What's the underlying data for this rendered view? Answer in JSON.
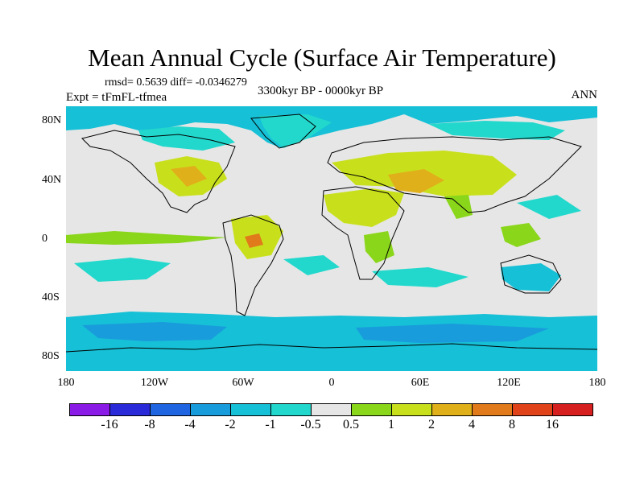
{
  "title": "Mean Annual Cycle (Surface Air Temperature)",
  "stats": "rmsd= 0.5639 diff= -0.0346279",
  "experiment": "Expt = tFmFL-tfmea",
  "period": "3300kyr BP - 0000kyr BP",
  "season": "ANN",
  "lat_labels": [
    "80N",
    "40N",
    "0",
    "40S",
    "80S"
  ],
  "lon_labels": [
    "180",
    "120W",
    "60W",
    "0",
    "60E",
    "120E",
    "180"
  ],
  "colorbar": {
    "labels": [
      "-16",
      "-8",
      "-4",
      "-2",
      "-1",
      "-0.5",
      "0.5",
      "1",
      "2",
      "4",
      "8",
      "16"
    ],
    "colors": [
      "#8a1ae6",
      "#2a2ad8",
      "#1f64e0",
      "#199cdc",
      "#16c0d6",
      "#22d8cc",
      "#e6e6e6",
      "#8ad61a",
      "#c8e01c",
      "#e0b01a",
      "#e07a1a",
      "#e0421a",
      "#d61f1f"
    ]
  },
  "map_colors": {
    "neutral": "#e6e6e6",
    "cool_light": "#22d8cc",
    "cool": "#16c0d6",
    "cool_dark": "#199cdc",
    "warm_light": "#8ad61a",
    "warm": "#c8e01c",
    "warm_dark": "#e0b01a",
    "hot": "#e07a1a",
    "coast": "#000000"
  }
}
